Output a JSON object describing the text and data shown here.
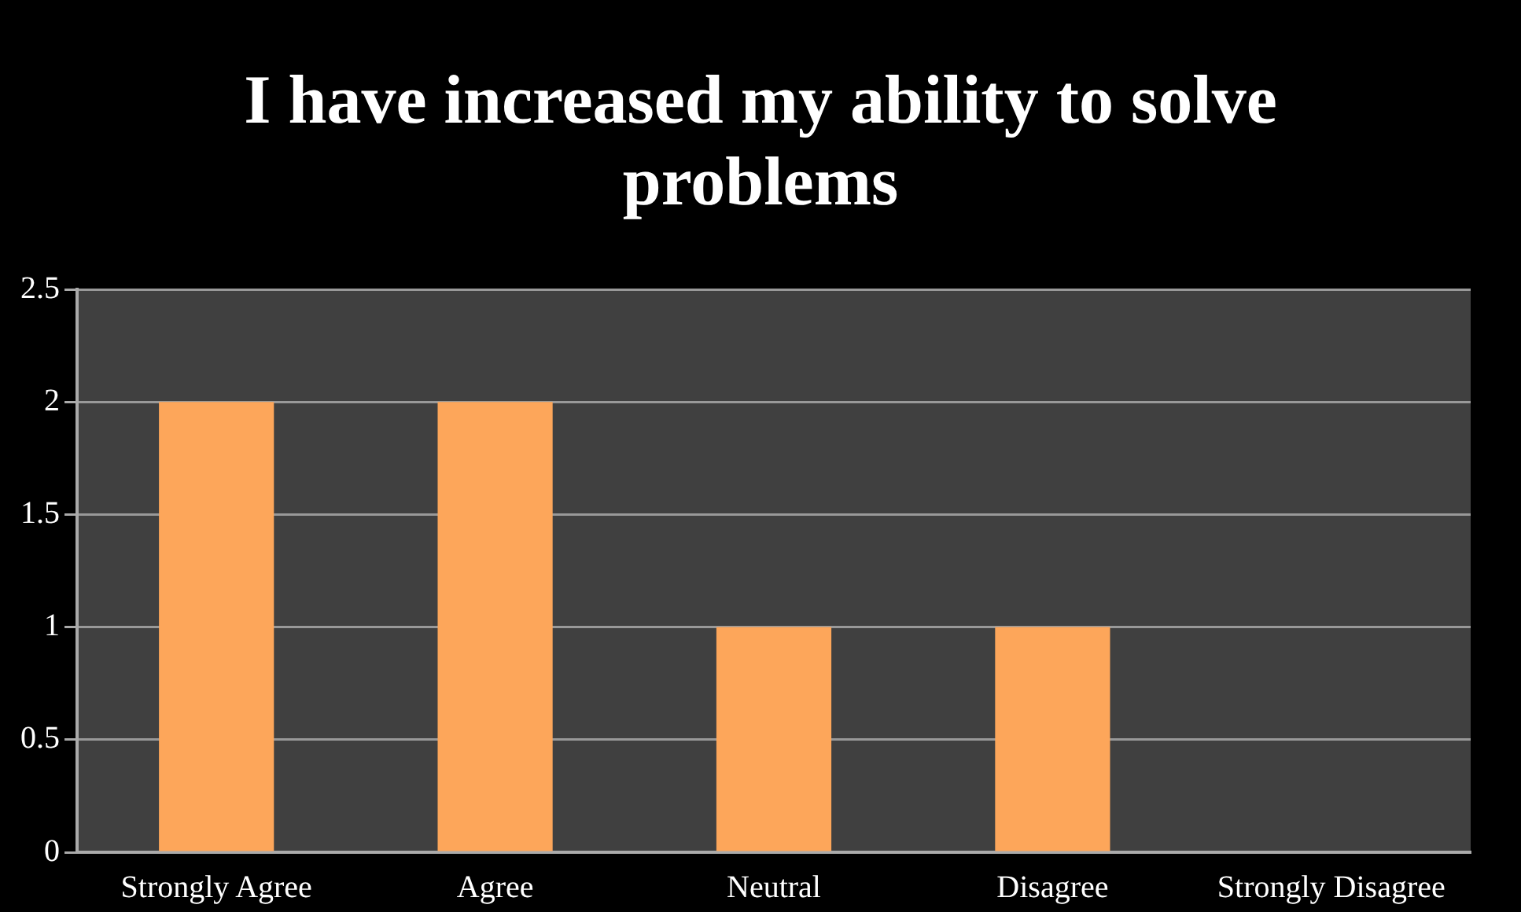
{
  "chart_data": {
    "type": "bar",
    "title": "I have increased my ability to solve problems",
    "categories": [
      "Strongly Agree",
      "Agree",
      "Neutral",
      "Disagree",
      "Strongly Disagree"
    ],
    "values": [
      2,
      2,
      1,
      1,
      0
    ],
    "color": "#fda65a",
    "ylim": [
      0,
      2.5
    ],
    "yticks": [
      0,
      0.5,
      1,
      1.5,
      2,
      2.5
    ],
    "grid": "y"
  }
}
